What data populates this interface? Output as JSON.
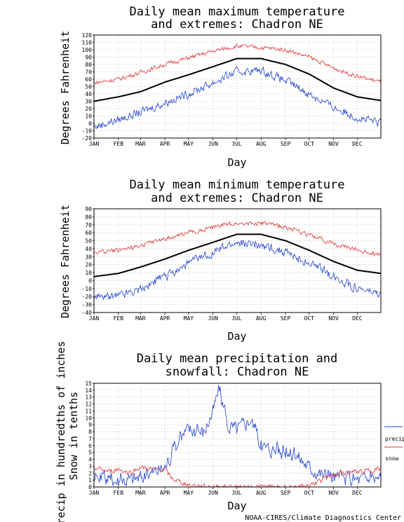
{
  "months": [
    "JAN",
    "FEB",
    "MAR",
    "APR",
    "MAY",
    "JUN",
    "JUL",
    "AUG",
    "SEP",
    "OCT",
    "NOV",
    "DEC"
  ],
  "credit": "NOAA-CIRES/Climate Diagnostics Center",
  "colors": {
    "mean": "#000000",
    "high": "#e03030",
    "low": "#1f3fd0",
    "grid": "#9a9a9a"
  },
  "chart_data": [
    {
      "type": "line",
      "title_line1": "Daily mean maximum temperature",
      "title_line2": "and extremes: Chadron NE",
      "xlabel": "Day",
      "ylabel": "Degrees Fahrenheit",
      "ylim": [
        -20,
        120
      ],
      "yticks": [
        -20,
        -10,
        0,
        10,
        20,
        30,
        40,
        50,
        60,
        70,
        80,
        90,
        100,
        110,
        120
      ],
      "series": [
        {
          "role": "mean",
          "anchors": [
            [
              1,
              30
            ],
            [
              32,
              36
            ],
            [
              60,
              43
            ],
            [
              91,
              56
            ],
            [
              121,
              66
            ],
            [
              152,
              77
            ],
            [
              182,
              88
            ],
            [
              213,
              88
            ],
            [
              244,
              80
            ],
            [
              274,
              67
            ],
            [
              305,
              48
            ],
            [
              335,
              36
            ],
            [
              365,
              31
            ]
          ]
        },
        {
          "role": "high",
          "anchors": [
            [
              1,
              55
            ],
            [
              32,
              60
            ],
            [
              60,
              69
            ],
            [
              91,
              80
            ],
            [
              121,
              89
            ],
            [
              152,
              98
            ],
            [
              182,
              105
            ],
            [
              213,
              103
            ],
            [
              244,
              100
            ],
            [
              274,
              90
            ],
            [
              305,
              75
            ],
            [
              335,
              64
            ],
            [
              365,
              56
            ]
          ]
        },
        {
          "role": "low",
          "anchors": [
            [
              1,
              -5
            ],
            [
              32,
              5
            ],
            [
              60,
              15
            ],
            [
              91,
              28
            ],
            [
              121,
              40
            ],
            [
              152,
              55
            ],
            [
              182,
              70
            ],
            [
              213,
              72
            ],
            [
              244,
              58
            ],
            [
              274,
              40
            ],
            [
              305,
              22
            ],
            [
              335,
              8
            ],
            [
              365,
              0
            ]
          ]
        }
      ]
    },
    {
      "type": "line",
      "title_line1": "Daily mean minimum temperature",
      "title_line2": "and extremes: Chadron NE",
      "xlabel": "Day",
      "ylabel": "Degrees Fahrenheit",
      "ylim": [
        -40,
        90
      ],
      "yticks": [
        -40,
        -30,
        -20,
        -10,
        0,
        10,
        20,
        30,
        40,
        50,
        60,
        70,
        80,
        90
      ],
      "series": [
        {
          "role": "mean",
          "anchors": [
            [
              1,
              5
            ],
            [
              32,
              9
            ],
            [
              60,
              17
            ],
            [
              91,
              27
            ],
            [
              121,
              38
            ],
            [
              152,
              48
            ],
            [
              182,
              58
            ],
            [
              213,
              58
            ],
            [
              244,
              50
            ],
            [
              274,
              38
            ],
            [
              305,
              24
            ],
            [
              335,
              13
            ],
            [
              365,
              9
            ]
          ]
        },
        {
          "role": "high",
          "anchors": [
            [
              1,
              35
            ],
            [
              32,
              38
            ],
            [
              60,
              44
            ],
            [
              91,
              52
            ],
            [
              121,
              60
            ],
            [
              152,
              67
            ],
            [
              182,
              72
            ],
            [
              213,
              72
            ],
            [
              244,
              67
            ],
            [
              274,
              57
            ],
            [
              305,
              46
            ],
            [
              335,
              38
            ],
            [
              365,
              33
            ]
          ]
        },
        {
          "role": "low",
          "anchors": [
            [
              1,
              -22
            ],
            [
              32,
              -18
            ],
            [
              60,
              -10
            ],
            [
              91,
              5
            ],
            [
              121,
              22
            ],
            [
              152,
              35
            ],
            [
              182,
              47
            ],
            [
              213,
              45
            ],
            [
              244,
              35
            ],
            [
              274,
              22
            ],
            [
              305,
              5
            ],
            [
              335,
              -10
            ],
            [
              365,
              -18
            ]
          ]
        }
      ]
    },
    {
      "type": "line",
      "title_line1": "Daily mean precipitation and",
      "title_line2": "snowfall: Chadron NE",
      "xlabel": "Day",
      "ylabel": "Precip in hundredths of inches",
      "ylabel2": "Snow in tenths",
      "ylim": [
        0,
        15
      ],
      "yticks": [
        0,
        1,
        2,
        3,
        4,
        5,
        6,
        7,
        8,
        9,
        10,
        11,
        12,
        13,
        14,
        15
      ],
      "legend": [
        "precip",
        "snow"
      ],
      "series": [
        {
          "role": "precip",
          "anchors": [
            [
              1,
              1.2
            ],
            [
              32,
              1.0
            ],
            [
              60,
              1.5
            ],
            [
              91,
              3.0
            ],
            [
              110,
              7.0
            ],
            [
              121,
              8.5
            ],
            [
              140,
              8.0
            ],
            [
              152,
              11.0
            ],
            [
              160,
              14.5
            ],
            [
              170,
              9.0
            ],
            [
              182,
              8.5
            ],
            [
              200,
              10.0
            ],
            [
              213,
              6.0
            ],
            [
              230,
              5.5
            ],
            [
              244,
              5.0
            ],
            [
              260,
              4.5
            ],
            [
              274,
              3.0
            ],
            [
              290,
              2.0
            ],
            [
              305,
              1.5
            ],
            [
              320,
              1.2
            ],
            [
              335,
              1.2
            ],
            [
              365,
              1.5
            ]
          ]
        },
        {
          "role": "snow",
          "anchors": [
            [
              1,
              2.8
            ],
            [
              20,
              2.2
            ],
            [
              32,
              2.6
            ],
            [
              45,
              2.0
            ],
            [
              60,
              2.8
            ],
            [
              80,
              2.5
            ],
            [
              91,
              2.5
            ],
            [
              100,
              1.2
            ],
            [
              115,
              0.5
            ],
            [
              130,
              0.2
            ],
            [
              140,
              0.05
            ],
            [
              260,
              0
            ],
            [
              275,
              0.3
            ],
            [
              290,
              1.0
            ],
            [
              305,
              1.8
            ],
            [
              320,
              2.0
            ],
            [
              335,
              2.2
            ],
            [
              365,
              2.6
            ]
          ]
        }
      ]
    }
  ]
}
